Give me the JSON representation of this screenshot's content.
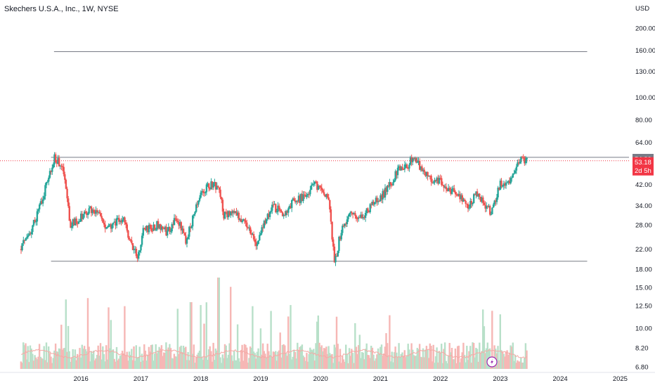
{
  "chart_data": {
    "type": "candlestick",
    "title": "Skechers U.S.A., Inc., 1W, NYSE",
    "currency_label": "USD",
    "y_scale": "log",
    "ylim": [
      6.2,
      230
    ],
    "xlim": [
      2015.0,
      2025.5
    ],
    "x_ticks": [
      "2016",
      "2017",
      "2018",
      "2019",
      "2020",
      "2021",
      "2022",
      "2023",
      "2024",
      "2025"
    ],
    "y_ticks": [
      200,
      160,
      130,
      100,
      80,
      64,
      42,
      34,
      28,
      22,
      18,
      15,
      12.5,
      10,
      8.2,
      6.8
    ],
    "y_tick_labels": [
      "200.00",
      "160.00",
      "130.00",
      "100.00",
      "80.00",
      "64.00",
      "42.00",
      "34.00",
      "28.00",
      "22.00",
      "18.00",
      "15.00",
      "12.50",
      "10.00",
      "8.20",
      "6.80"
    ],
    "price_anchors": [
      [
        2015.0,
        22
      ],
      [
        2015.25,
        30
      ],
      [
        2015.45,
        44
      ],
      [
        2015.55,
        55
      ],
      [
        2015.7,
        50
      ],
      [
        2015.82,
        28
      ],
      [
        2016.0,
        30
      ],
      [
        2016.2,
        33
      ],
      [
        2016.45,
        27
      ],
      [
        2016.7,
        30
      ],
      [
        2016.85,
        23
      ],
      [
        2016.95,
        20
      ],
      [
        2017.05,
        27
      ],
      [
        2017.3,
        28
      ],
      [
        2017.45,
        26
      ],
      [
        2017.6,
        30
      ],
      [
        2017.75,
        24
      ],
      [
        2017.9,
        32
      ],
      [
        2018.05,
        40
      ],
      [
        2018.2,
        42
      ],
      [
        2018.3,
        40
      ],
      [
        2018.38,
        31
      ],
      [
        2018.6,
        31
      ],
      [
        2018.75,
        29
      ],
      [
        2018.95,
        23
      ],
      [
        2019.05,
        28
      ],
      [
        2019.2,
        34
      ],
      [
        2019.4,
        31
      ],
      [
        2019.55,
        36
      ],
      [
        2019.75,
        37
      ],
      [
        2019.9,
        42
      ],
      [
        2020.05,
        40
      ],
      [
        2020.15,
        35
      ],
      [
        2020.23,
        19
      ],
      [
        2020.35,
        27
      ],
      [
        2020.5,
        31
      ],
      [
        2020.7,
        30
      ],
      [
        2020.9,
        36
      ],
      [
        2021.05,
        38
      ],
      [
        2021.2,
        43
      ],
      [
        2021.3,
        50
      ],
      [
        2021.45,
        51
      ],
      [
        2021.55,
        55
      ],
      [
        2021.7,
        48
      ],
      [
        2021.9,
        44
      ],
      [
        2022.0,
        44
      ],
      [
        2022.15,
        40
      ],
      [
        2022.3,
        38
      ],
      [
        2022.45,
        34
      ],
      [
        2022.6,
        38
      ],
      [
        2022.75,
        34
      ],
      [
        2022.85,
        32
      ],
      [
        2023.0,
        42
      ],
      [
        2023.15,
        44
      ],
      [
        2023.25,
        50
      ],
      [
        2023.35,
        54
      ],
      [
        2023.46,
        53.18
      ]
    ],
    "horizontal_lines": [
      {
        "price": 158,
        "from": 2015.55,
        "to": 2024.45
      },
      {
        "price": 55,
        "from": 2015.5,
        "to": 2025.8
      },
      {
        "price": 19.5,
        "from": 2015.5,
        "to": 2024.45
      }
    ],
    "current_price": 53.18,
    "current_price_label": "53.18",
    "countdown_label": "2d 5h",
    "high_marker_label": "54.20",
    "volume_note": "Volume bars (green/red) with moving average at bottom of pane",
    "colors": {
      "up": "#26a69a",
      "down": "#ef5350",
      "volume_up": "#b8e0c9",
      "volume_down": "#f6b7b5",
      "hline": "#787b86",
      "price_line": "#f23645",
      "grey_tag": "#787b86",
      "lightning": "#9c27b0",
      "axis_text": "#131722"
    }
  }
}
